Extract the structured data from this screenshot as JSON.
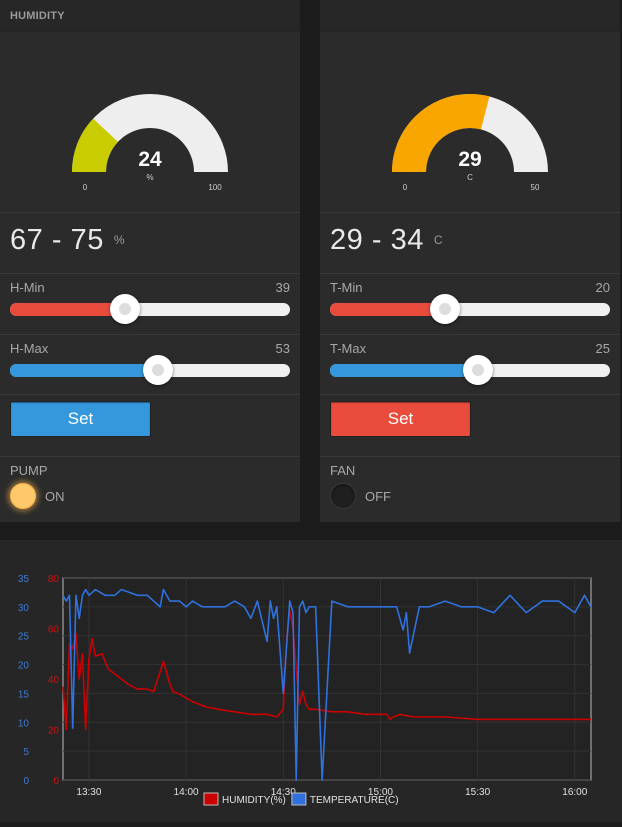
{
  "humidity": {
    "title": "HUMIDITY",
    "gauge": {
      "value": "24",
      "unit": "%",
      "min": "0",
      "max": "100",
      "fraction": 0.24,
      "color": "#c8cc00"
    },
    "range": {
      "low": "67",
      "high": "75",
      "separator": "-",
      "unit": "%"
    },
    "min_slider": {
      "label": "H-Min",
      "value": "39",
      "fraction": 0.41,
      "color": "#e94c3c"
    },
    "max_slider": {
      "label": "H-Max",
      "value": "53",
      "fraction": 0.53,
      "color": "#3598dc"
    },
    "set_button": {
      "label": "Set",
      "color": "#3598dc"
    },
    "switch": {
      "label": "PUMP",
      "state": "ON",
      "on": true,
      "color": "#ffc96b"
    }
  },
  "temperature": {
    "title": "",
    "gauge": {
      "value": "29",
      "unit": "C",
      "min": "0",
      "max": "50",
      "fraction": 0.58,
      "color": "#f9a600"
    },
    "range": {
      "low": "29",
      "high": "34",
      "separator": "-",
      "unit": "C"
    },
    "min_slider": {
      "label": "T-Min",
      "value": "20",
      "fraction": 0.41,
      "color": "#e94c3c"
    },
    "max_slider": {
      "label": "T-Max",
      "value": "25",
      "fraction": 0.53,
      "color": "#3598dc"
    },
    "set_button": {
      "label": "Set",
      "color": "#e94c3c"
    },
    "switch": {
      "label": "FAN",
      "state": "OFF",
      "on": false,
      "color": "#1f1f1f"
    }
  },
  "chart_data": {
    "type": "line",
    "x_ticks": [
      "13:30",
      "14:00",
      "14:30",
      "15:00",
      "15:30",
      "16:00"
    ],
    "x_tick_minutes": [
      30,
      60,
      90,
      120,
      150,
      180
    ],
    "xlim_minutes": [
      22,
      185
    ],
    "y_left": {
      "ticks": [
        "0",
        "5",
        "10",
        "15",
        "20",
        "25",
        "30",
        "35"
      ],
      "lim": [
        0,
        35
      ],
      "color": "#3a7bd5"
    },
    "y_right": {
      "ticks": [
        "0",
        "20",
        "40",
        "60",
        "80"
      ],
      "lim": [
        0,
        80
      ],
      "color": "#cc1111"
    },
    "legend": [
      "HUMIDITY(%)",
      "TEMPERATURE(C)"
    ],
    "series": [
      {
        "name": "HUMIDITY(%)",
        "axis": "right",
        "color": "#cc0000",
        "x": [
          22,
          23,
          24,
          25,
          26,
          27,
          28,
          29,
          30,
          31,
          32,
          34,
          36,
          38,
          40,
          42,
          45,
          48,
          50,
          53,
          55,
          56,
          58,
          62,
          66,
          70,
          75,
          80,
          85,
          88,
          90,
          91,
          92,
          93,
          94,
          95,
          96,
          97,
          98,
          100,
          105,
          110,
          115,
          120,
          122,
          123,
          124,
          126,
          130,
          140,
          150,
          160,
          170,
          180,
          185
        ],
        "y": [
          37,
          20,
          54,
          52,
          58,
          40,
          50,
          20,
          48,
          56,
          49,
          50,
          44,
          42,
          40,
          38,
          36,
          36,
          35,
          47,
          38,
          35,
          34,
          31,
          29,
          28,
          27,
          26,
          26,
          25,
          28,
          55,
          67,
          60,
          44,
          30,
          35,
          30,
          28,
          28,
          27,
          27,
          26,
          26,
          26,
          24,
          25,
          26,
          25,
          25,
          24,
          24,
          24,
          24,
          24
        ]
      },
      {
        "name": "TEMPERATURE(C)",
        "axis": "left",
        "color": "#2f72de",
        "x": [
          22,
          23,
          24,
          25,
          26,
          27,
          28,
          29,
          30,
          32,
          35,
          38,
          40,
          45,
          48,
          50,
          52,
          53,
          55,
          58,
          60,
          62,
          65,
          68,
          70,
          72,
          75,
          78,
          80,
          82,
          85,
          86,
          87,
          88,
          90,
          92,
          93,
          94,
          95,
          96,
          97,
          98,
          100,
          102,
          105,
          110,
          115,
          120,
          125,
          127,
          128,
          129,
          132,
          135,
          140,
          145,
          150,
          155,
          160,
          165,
          170,
          175,
          180,
          183,
          185
        ],
        "y": [
          32,
          31,
          32,
          9,
          32,
          28,
          32,
          33,
          32,
          33,
          32,
          32,
          33,
          32,
          32,
          31,
          30,
          33,
          31,
          31,
          30,
          31,
          30,
          30,
          30,
          30,
          31,
          30,
          28,
          31,
          24,
          31,
          28,
          30,
          15,
          31,
          29,
          0,
          30,
          31,
          29,
          30,
          30,
          0,
          31,
          30,
          30,
          30,
          30,
          26,
          29,
          22,
          30,
          30,
          31,
          30,
          30,
          29,
          32,
          29,
          31,
          31,
          29,
          32,
          30
        ]
      }
    ]
  }
}
